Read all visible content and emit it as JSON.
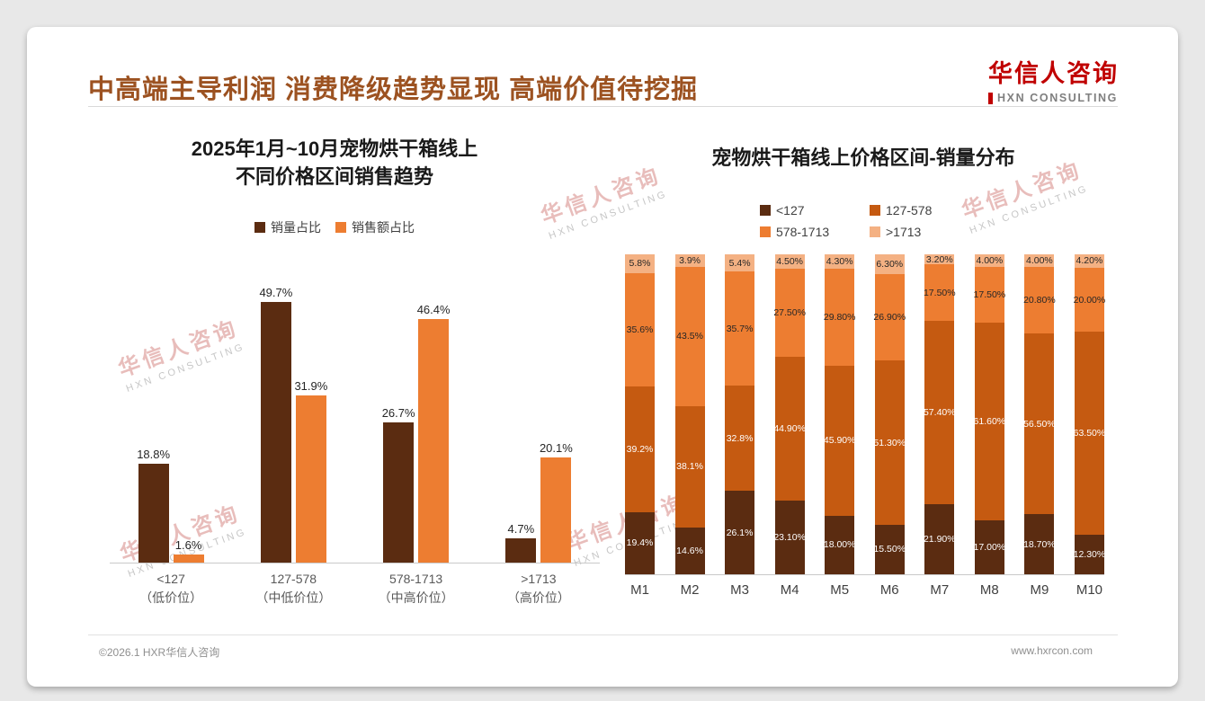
{
  "header": {
    "title": "中高端主导利润 消费降级趋势显现 高端价值待挖掘"
  },
  "logo": {
    "name_cn": "华信人咨询",
    "name_en": "HXN CONSULTING"
  },
  "watermark": {
    "cn": "华信人咨询",
    "en": "HXN CONSULTING"
  },
  "footer": {
    "copyright": "©2026.1 HXR华信人咨询",
    "website": "www.hxrcon.com"
  },
  "colors": {
    "title_brown": "#9C5221",
    "logo_red": "#C00000",
    "dark_brown": "#5B2C11",
    "mid_brown": "#C55A11",
    "orange": "#ED7D31",
    "light_orange": "#F4B183",
    "axis_text": "#595959",
    "footer_text": "#8F8F8F"
  },
  "chart_data": [
    {
      "type": "bar",
      "title": "2025年1月~10月宠物烘干箱线上 不同价格区间销售趋势",
      "title_lines": [
        "2025年1月~10月宠物烘干箱线上",
        "不同价格区间销售趋势"
      ],
      "categories": [
        "<127",
        "127-578",
        "578-1713",
        ">1713"
      ],
      "category_sublabels": [
        "（低价位）",
        "（中低价位）",
        "（中高价位）",
        "（高价位）"
      ],
      "legend_position": "top",
      "grid": false,
      "ylim": [
        0,
        55
      ],
      "series": [
        {
          "name": "销量占比",
          "color": "#5B2C11",
          "values": [
            18.8,
            49.7,
            26.7,
            4.7
          ],
          "labels": [
            "18.8%",
            "49.7%",
            "26.7%",
            "4.7%"
          ]
        },
        {
          "name": "销售额占比",
          "color": "#ED7D31",
          "values": [
            1.6,
            31.9,
            46.4,
            20.1
          ],
          "labels": [
            "1.6%",
            "31.9%",
            "46.4%",
            "20.1%"
          ]
        }
      ]
    },
    {
      "type": "stacked-bar",
      "title": "宠物烘干箱线上价格区间-销量分布",
      "categories": [
        "M1",
        "M2",
        "M3",
        "M4",
        "M5",
        "M6",
        "M7",
        "M8",
        "M9",
        "M10"
      ],
      "legend_position": "top",
      "grid": false,
      "ylim": [
        0,
        100
      ],
      "series": [
        {
          "name": "<127",
          "color": "#5B2C11",
          "label_color": "#FFFFFF",
          "values": [
            19.4,
            14.6,
            26.1,
            23.1,
            18.0,
            15.5,
            21.9,
            17.0,
            18.7,
            12.3
          ],
          "labels": [
            "19.4%",
            "14.6%",
            "26.1%",
            "23.10%",
            "18.00%",
            "15.50%",
            "21.90%",
            "17.00%",
            "18.70%",
            "12.30%"
          ]
        },
        {
          "name": "127-578",
          "color": "#C55A11",
          "label_color": "#FFFFFF",
          "values": [
            39.2,
            38.1,
            32.8,
            44.9,
            45.9,
            51.3,
            57.4,
            61.6,
            56.5,
            63.5
          ],
          "labels": [
            "39.2%",
            "38.1%",
            "32.8%",
            "44.90%",
            "45.90%",
            "51.30%",
            "57.40%",
            "61.60%",
            "56.50%",
            "63.50%"
          ]
        },
        {
          "name": "578-1713",
          "color": "#ED7D31",
          "label_color": "#262626",
          "values": [
            35.6,
            43.5,
            35.7,
            27.5,
            29.8,
            26.9,
            17.5,
            17.5,
            20.8,
            20.0
          ],
          "labels": [
            "35.6%",
            "43.5%",
            "35.7%",
            "27.50%",
            "29.80%",
            "26.90%",
            "17.50%",
            "17.50%",
            "20.80%",
            "20.00%"
          ]
        },
        {
          "name": ">1713",
          "color": "#F4B183",
          "label_color": "#262626",
          "values": [
            5.8,
            3.9,
            5.4,
            4.5,
            4.3,
            6.3,
            3.2,
            4.0,
            4.0,
            4.2
          ],
          "labels": [
            "5.8%",
            "3.9%",
            "5.4%",
            "4.50%",
            "4.30%",
            "6.30%",
            "3.20%",
            "4.00%",
            "4.00%",
            "4.20%"
          ]
        }
      ]
    }
  ]
}
